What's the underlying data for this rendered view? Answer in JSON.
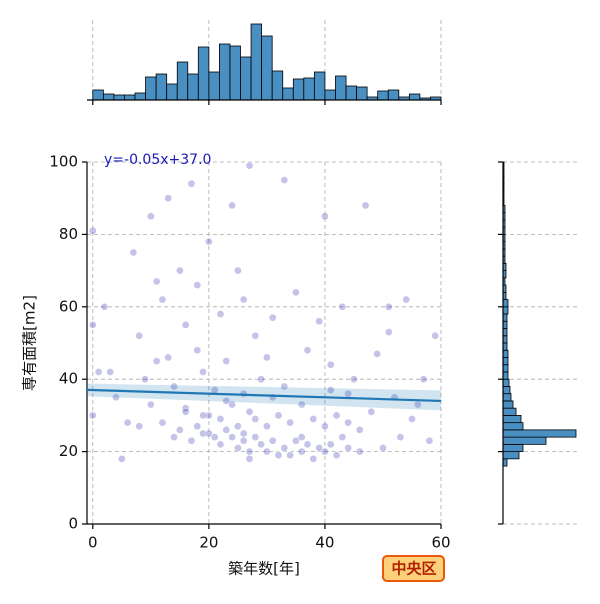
{
  "chart_data": [
    {
      "type": "scatter",
      "xlabel": "築年数[年]",
      "ylabel": "専有面積[m2]",
      "annotation": "y=-0.05x+37.0",
      "badge": "中央区",
      "xlim": [
        -1,
        60
      ],
      "ylim": [
        0,
        100
      ],
      "xticks": [
        0,
        20,
        40,
        60
      ],
      "yticks": [
        0,
        20,
        40,
        60,
        80,
        100
      ],
      "grid": true,
      "color": "#2a2ab0",
      "x": [
        0,
        0,
        0,
        1,
        2,
        4,
        5,
        6,
        7,
        8,
        9,
        10,
        10,
        11,
        12,
        12,
        13,
        14,
        14,
        15,
        15,
        16,
        16,
        17,
        17,
        18,
        18,
        18,
        19,
        19,
        20,
        20,
        20,
        21,
        21,
        22,
        22,
        22,
        23,
        23,
        24,
        24,
        24,
        25,
        25,
        25,
        26,
        26,
        26,
        27,
        27,
        27,
        28,
        28,
        28,
        29,
        29,
        30,
        30,
        30,
        31,
        31,
        32,
        32,
        33,
        33,
        34,
        34,
        35,
        35,
        36,
        36,
        37,
        37,
        38,
        38,
        39,
        39,
        40,
        40,
        40,
        41,
        41,
        42,
        42,
        43,
        43,
        44,
        44,
        45,
        46,
        47,
        48,
        49,
        50,
        51,
        52,
        53,
        54,
        55,
        56,
        57,
        58,
        59,
        3,
        8,
        13,
        19,
        23,
        27,
        31,
        36,
        41,
        46,
        51,
        11,
        16,
        26,
        33,
        44
      ],
      "values": [
        81,
        55,
        30,
        42,
        60,
        35,
        18,
        28,
        75,
        52,
        40,
        33,
        85,
        45,
        62,
        28,
        90,
        24,
        38,
        70,
        26,
        32,
        55,
        94,
        23,
        27,
        48,
        66,
        25,
        42,
        25,
        30,
        78,
        24,
        37,
        22,
        29,
        58,
        26,
        45,
        24,
        33,
        88,
        21,
        27,
        70,
        25,
        36,
        62,
        20,
        31,
        99,
        24,
        29,
        52,
        22,
        40,
        20,
        27,
        46,
        23,
        35,
        19,
        30,
        21,
        38,
        19,
        28,
        23,
        64,
        20,
        33,
        22,
        48,
        18,
        29,
        21,
        56,
        20,
        27,
        85,
        22,
        44,
        19,
        30,
        24,
        60,
        21,
        36,
        40,
        26,
        88,
        31,
        47,
        21,
        53,
        35,
        24,
        62,
        29,
        33,
        40,
        23,
        52,
        42,
        27,
        46,
        30,
        34,
        18,
        57,
        24,
        37,
        20,
        60,
        67,
        31,
        23,
        95,
        28
      ]
    },
    {
      "type": "line",
      "x": [
        -1,
        60
      ],
      "values": [
        37.05,
        34.0
      ],
      "ci_lower": [
        35.3,
        31.4
      ],
      "ci_upper": [
        38.8,
        36.9
      ],
      "color": "#1f77b4"
    },
    {
      "type": "histogram",
      "orientation": "vertical",
      "color": "#4a8fc2",
      "grid": true,
      "xticks": [
        0,
        20,
        40,
        60
      ],
      "ylim": [
        0,
        80
      ],
      "bins": [
        0,
        1.82,
        3.64,
        5.45,
        7.27,
        9.09,
        10.91,
        12.73,
        14.55,
        16.36,
        18.18,
        20,
        21.82,
        23.64,
        25.45,
        27.27,
        29.09,
        30.91,
        32.73,
        34.55,
        36.36,
        38.18,
        40,
        41.82,
        43.64,
        45.45,
        47.27,
        49.09,
        50.91,
        52.73,
        54.55,
        56.36,
        58.18,
        60
      ],
      "values": [
        10,
        6,
        5,
        5,
        7,
        23,
        26,
        16,
        38,
        26,
        53,
        28,
        56,
        54,
        43,
        76,
        64,
        29,
        12,
        21,
        22,
        28,
        10,
        24,
        14,
        13,
        3,
        9,
        10,
        3,
        6,
        2,
        3
      ]
    },
    {
      "type": "histogram",
      "orientation": "horizontal",
      "color": "#4a8fc2",
      "grid": true,
      "yticks": [
        0,
        20,
        40,
        60,
        80,
        100
      ],
      "xlim": [
        0,
        75
      ],
      "bins": [
        16,
        18,
        20,
        22,
        24,
        26,
        28,
        30,
        32,
        34,
        36,
        38,
        40,
        42,
        44,
        46,
        48,
        50,
        52,
        54,
        56,
        58,
        60,
        62,
        64,
        66,
        68,
        70,
        72,
        74,
        76,
        78,
        80,
        82,
        84,
        86,
        88,
        90,
        92,
        94,
        96,
        98,
        100
      ],
      "values": [
        4,
        16,
        20,
        43,
        73,
        20,
        18,
        13,
        10,
        8,
        7,
        6,
        5,
        5,
        5,
        5,
        4,
        4,
        4,
        4,
        4,
        5,
        5,
        3,
        3,
        2,
        3,
        3,
        2,
        2,
        2,
        2,
        2,
        2,
        2,
        2,
        1,
        1,
        1,
        1,
        1,
        1
      ]
    }
  ]
}
